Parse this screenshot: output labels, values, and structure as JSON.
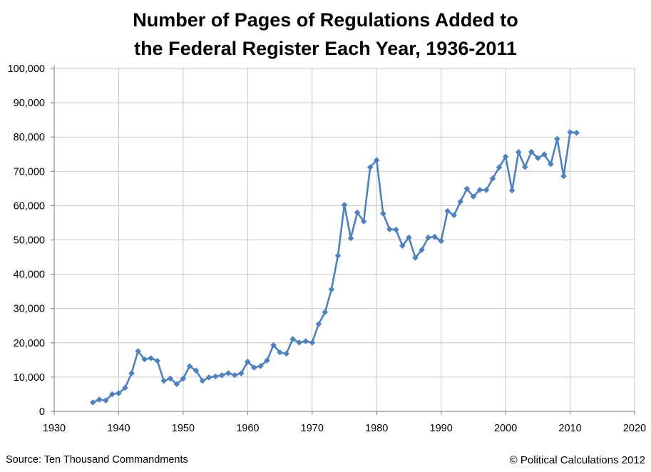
{
  "page": {
    "background": "#ffffff"
  },
  "title": {
    "line1": "Number of Pages of Regulations Added to",
    "line2": "the Federal Register Each Year, 1936-2011"
  },
  "footer": {
    "source": "Source: Ten Thousand Commandments",
    "copyright": "© Political Calculations 2012"
  },
  "chart_data": {
    "type": "line",
    "title": "Number of Pages of Regulations Added to the Federal Register Each Year, 1936-2011",
    "series_name": "Pages of regulations added to the Federal Register",
    "marker": "diamond",
    "line_color": "#4F81BD",
    "marker_color": "#4F81BD",
    "gridline_color": "#C6C6C6",
    "axis_color": "#8E8E8E",
    "tick_label_color": "#000000",
    "grid": true,
    "legend": "none",
    "xlabel": "",
    "ylabel": "",
    "xlim": [
      1930,
      2020
    ],
    "ylim": [
      0,
      100000
    ],
    "x_ticks": [
      1930,
      1940,
      1950,
      1960,
      1970,
      1980,
      1990,
      2000,
      2010,
      2020
    ],
    "y_ticks": [
      0,
      10000,
      20000,
      30000,
      40000,
      50000,
      60000,
      70000,
      80000,
      90000,
      100000
    ],
    "y_tick_labels": [
      "0",
      "10,000",
      "20,000",
      "30,000",
      "40,000",
      "50,000",
      "60,000",
      "70,000",
      "80,000",
      "90,000",
      "100,000"
    ],
    "x": [
      1936,
      1937,
      1938,
      1939,
      1940,
      1941,
      1942,
      1943,
      1944,
      1945,
      1946,
      1947,
      1948,
      1949,
      1950,
      1951,
      1952,
      1953,
      1954,
      1955,
      1956,
      1957,
      1958,
      1959,
      1960,
      1961,
      1962,
      1963,
      1964,
      1965,
      1966,
      1967,
      1968,
      1969,
      1970,
      1971,
      1972,
      1973,
      1974,
      1975,
      1976,
      1977,
      1978,
      1979,
      1980,
      1981,
      1982,
      1983,
      1984,
      1985,
      1986,
      1987,
      1988,
      1989,
      1990,
      1991,
      1992,
      1993,
      1994,
      1995,
      1996,
      1997,
      1998,
      1999,
      2000,
      2001,
      2002,
      2003,
      2004,
      2005,
      2006,
      2007,
      2008,
      2009,
      2010,
      2011
    ],
    "values": [
      2620,
      3450,
      3194,
      5007,
      5307,
      6877,
      11134,
      17553,
      15194,
      15508,
      14736,
      8902,
      9608,
      7952,
      9562,
      13175,
      11896,
      8912,
      9910,
      10196,
      10528,
      11156,
      10579,
      11116,
      14479,
      12792,
      13226,
      14842,
      19304,
      17206,
      16850,
      21088,
      20072,
      20466,
      20036,
      25447,
      28924,
      35592,
      45422,
      60221,
      50505,
      58000,
      55400,
      71191,
      73258,
      57700,
      53100,
      53000,
      48300,
      50700,
      44812,
      47100,
      50700,
      50900,
      49700,
      58400,
      57200,
      61166,
      64914,
      62645,
      64591,
      64549,
      67900,
      71161,
      74258,
      64438,
      75606,
      71269,
      75675,
      73870,
      74937,
      72090,
      79435,
      68598,
      81405,
      81247
    ]
  }
}
